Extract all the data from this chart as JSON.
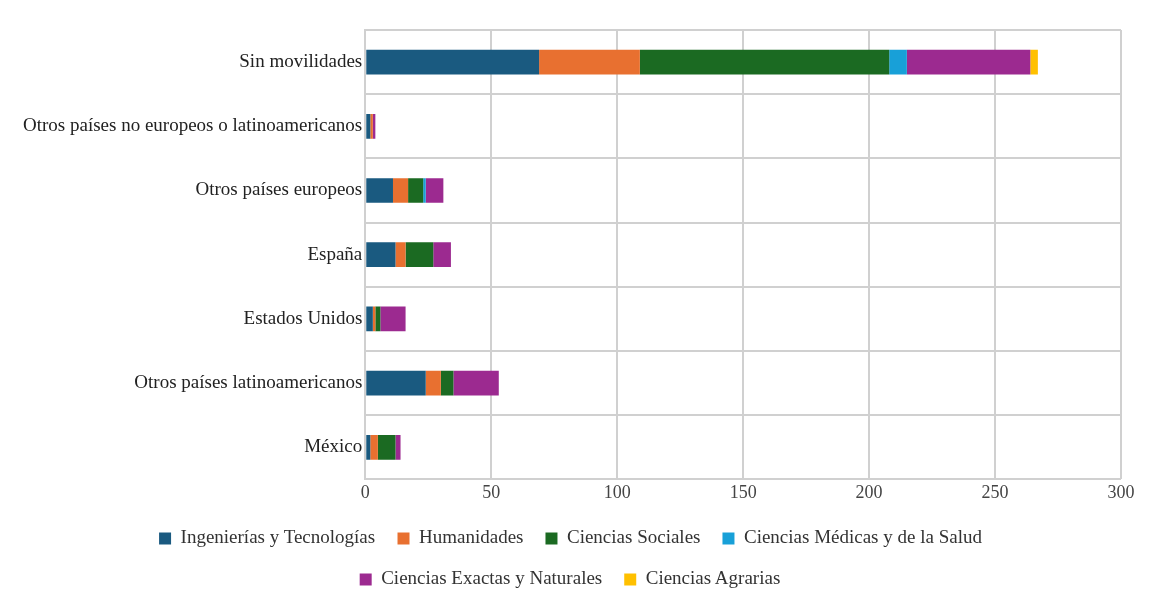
{
  "chart_data": {
    "type": "bar",
    "orientation": "horizontal",
    "stacked": true,
    "categories": [
      "Sin movilidades",
      "Otros países no europeos o latinoamericanos",
      "Otros países europeos",
      "España",
      "Estados Unidos",
      "Otros países latinoamericanos",
      "México"
    ],
    "series": [
      {
        "name": "Ingenierías y Tecnologías",
        "color": "#1a5a80",
        "values": [
          69,
          2,
          11,
          12,
          3,
          24,
          2
        ]
      },
      {
        "name": "Humanidades",
        "color": "#e87030",
        "values": [
          40,
          1,
          6,
          4,
          1,
          6,
          3
        ]
      },
      {
        "name": "Ciencias Sociales",
        "color": "#1b6a22",
        "values": [
          99,
          0,
          6,
          11,
          2,
          5,
          7
        ]
      },
      {
        "name": "Ciencias Médicas y de la Salud",
        "color": "#18a0d8",
        "values": [
          7,
          0,
          1,
          0,
          0,
          0,
          0
        ]
      },
      {
        "name": "Ciencias Exactas y Naturales",
        "color": "#9c2a90",
        "values": [
          49,
          1,
          7,
          7,
          10,
          18,
          2
        ]
      },
      {
        "name": "Ciencias Agrarias",
        "color": "#ffc000",
        "values": [
          3,
          0,
          0,
          0,
          0,
          0,
          0
        ]
      }
    ],
    "xlim": [
      0,
      300
    ],
    "xticks": [
      0,
      50,
      100,
      150,
      200,
      250,
      300
    ],
    "grid": true,
    "legend": "bottom"
  }
}
